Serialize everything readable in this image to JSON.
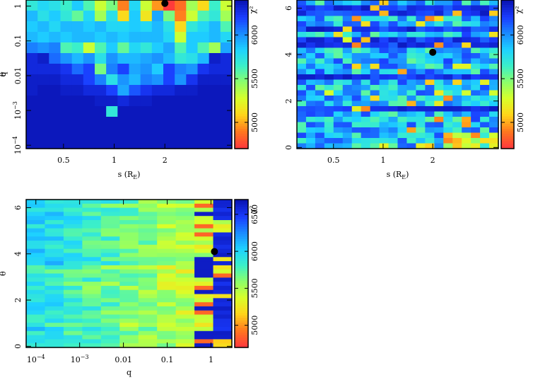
{
  "colors": {
    "scale": [
      "#ff3b3b",
      "#ff7a1e",
      "#ffd51a",
      "#d8ff2a",
      "#8cff6a",
      "#3cf0c8",
      "#1ed2ff",
      "#1a8cff",
      "#1a3cff",
      "#0a14b4"
    ],
    "marker": "#000000"
  },
  "chart_data": [
    {
      "id": "panel-top-left",
      "type": "heatmap",
      "xlabel": "s (R_E)",
      "xlabel_main": "s (R",
      "xlabel_sub": "E",
      "xlabel_close": ")",
      "ylabel": "q",
      "x_scale": "log",
      "xlim": [
        0.3,
        5.0
      ],
      "y_scale": "log",
      "ylim": [
        8e-05,
        1.5
      ],
      "x_ticks": [
        {
          "value": 0.5,
          "label": "0.5"
        },
        {
          "value": 1,
          "label": "1"
        },
        {
          "value": 2,
          "label": "2"
        }
      ],
      "y_ticks": [
        {
          "value": 1,
          "label": "1"
        },
        {
          "value": 0.1,
          "label": "0.1"
        },
        {
          "value": 0.01,
          "label": "0.01"
        },
        {
          "value": 0.001,
          "label": "10",
          "exp": "−3"
        },
        {
          "value": 0.0001,
          "label": "10",
          "exp": "−4"
        }
      ],
      "colorbar": {
        "label": "χ²",
        "ticks": [
          {
            "value": 5000,
            "label": "5000"
          },
          {
            "value": 5500,
            "label": "5500"
          },
          {
            "value": 6000,
            "label": "6000"
          }
        ],
        "range": [
          4700,
          6400
        ]
      },
      "best_fit": {
        "x": 2,
        "y": 1.2
      },
      "grid": {
        "cols": 18,
        "rows": 14
      },
      "z": [
        [
          5700,
          5800,
          5750,
          5650,
          5850,
          5600,
          5300,
          5500,
          4900,
          5800,
          5300,
          4950,
          4700,
          4850,
          5400,
          5100,
          5650,
          5300
        ],
        [
          5900,
          5750,
          5850,
          5700,
          5550,
          5800,
          5400,
          5750,
          5100,
          5850,
          5150,
          5950,
          5500,
          4900,
          5300,
          5600,
          5700,
          5400
        ],
        [
          5850,
          5900,
          5800,
          5900,
          5900,
          5850,
          5900,
          5800,
          5800,
          5850,
          5800,
          5900,
          5750,
          5100,
          5700,
          5800,
          5900,
          5600
        ],
        [
          5900,
          5850,
          5900,
          5850,
          5900,
          5900,
          5850,
          5900,
          5850,
          5900,
          5900,
          5900,
          5800,
          5300,
          5850,
          5850,
          5900,
          5800
        ],
        [
          6050,
          6000,
          6050,
          5600,
          5650,
          5300,
          5600,
          5850,
          5550,
          5800,
          5700,
          5850,
          5950,
          5600,
          5850,
          5600,
          5400,
          5950
        ],
        [
          6300,
          6350,
          6100,
          6000,
          5900,
          6000,
          5750,
          6000,
          5900,
          5900,
          5950,
          6000,
          5900,
          5700,
          5750,
          5900,
          6350,
          6300
        ],
        [
          6300,
          6300,
          6300,
          6250,
          6100,
          6200,
          5500,
          6050,
          6200,
          5950,
          6000,
          5850,
          6200,
          6050,
          6000,
          6250,
          6300,
          6300
        ],
        [
          6350,
          6350,
          6350,
          6300,
          6300,
          6200,
          6050,
          5750,
          6000,
          5900,
          6050,
          6000,
          6200,
          6000,
          6250,
          6350,
          6350,
          6350
        ],
        [
          6350,
          6380,
          6380,
          6350,
          6350,
          6300,
          6300,
          6200,
          5950,
          6150,
          6250,
          6300,
          6300,
          6350,
          6350,
          6380,
          6380,
          6380
        ],
        [
          6380,
          6380,
          6380,
          6380,
          6380,
          6380,
          6350,
          6350,
          6300,
          6350,
          6350,
          6380,
          6380,
          6380,
          6380,
          6380,
          6380,
          6380
        ],
        [
          6380,
          6380,
          6380,
          6380,
          6380,
          6380,
          6380,
          5700,
          6380,
          6380,
          6380,
          6380,
          6380,
          6380,
          6380,
          6380,
          6380,
          6380
        ],
        [
          6380,
          6380,
          6380,
          6380,
          6380,
          6380,
          6380,
          6380,
          6380,
          6380,
          6380,
          6380,
          6380,
          6380,
          6380,
          6380,
          6380,
          6380
        ],
        [
          6380,
          6380,
          6380,
          6380,
          6380,
          6380,
          6380,
          6380,
          6380,
          6380,
          6380,
          6380,
          6380,
          6380,
          6380,
          6380,
          6380,
          6380
        ],
        [
          6380,
          6380,
          6380,
          6380,
          6380,
          6380,
          6380,
          6380,
          6380,
          6380,
          6380,
          6380,
          6380,
          6380,
          6380,
          6380,
          6380,
          6380
        ]
      ]
    },
    {
      "id": "panel-top-right",
      "type": "heatmap",
      "xlabel": "s (R_E)",
      "xlabel_main": "s (R",
      "xlabel_sub": "E",
      "xlabel_close": ")",
      "ylabel": "θ",
      "x_scale": "log",
      "xlim": [
        0.3,
        5.0
      ],
      "y_scale": "linear",
      "ylim": [
        -0.05,
        6.35
      ],
      "x_ticks": [
        {
          "value": 0.5,
          "label": "0.5"
        },
        {
          "value": 1,
          "label": "1"
        },
        {
          "value": 2,
          "label": "2"
        }
      ],
      "y_ticks": [
        {
          "value": 0,
          "label": "0"
        },
        {
          "value": 2,
          "label": "2"
        },
        {
          "value": 4,
          "label": "4"
        },
        {
          "value": 6,
          "label": "6"
        }
      ],
      "colorbar": {
        "label": "χ²",
        "ticks": [
          {
            "value": 5000,
            "label": "5000"
          },
          {
            "value": 5500,
            "label": "5500"
          },
          {
            "value": 6000,
            "label": "6000"
          }
        ],
        "range": [
          4700,
          6400
        ]
      },
      "best_fit": {
        "x": 2.0,
        "y": 4.1
      },
      "grid": {
        "cols": 22,
        "rows": 28
      },
      "z_seed": 17,
      "z_rule": "banded"
    },
    {
      "id": "panel-bottom-left",
      "type": "heatmap",
      "xlabel": "q",
      "ylabel": "θ",
      "x_scale": "log",
      "xlim": [
        6e-05,
        3.0
      ],
      "y_scale": "linear",
      "ylim": [
        -0.05,
        6.35
      ],
      "x_ticks": [
        {
          "value": 0.0001,
          "label": "10",
          "exp": "−4"
        },
        {
          "value": 0.001,
          "label": "10",
          "exp": "−3"
        },
        {
          "value": 0.01,
          "label": "0.01"
        },
        {
          "value": 0.1,
          "label": "0.1"
        },
        {
          "value": 1,
          "label": "1"
        }
      ],
      "y_ticks": [
        {
          "value": 0,
          "label": "0"
        },
        {
          "value": 2,
          "label": "2"
        },
        {
          "value": 4,
          "label": "4"
        },
        {
          "value": 6,
          "label": "6"
        }
      ],
      "colorbar": {
        "label": "χ²",
        "ticks": [
          {
            "value": 5000,
            "label": "5000"
          },
          {
            "value": 5500,
            "label": "5500"
          },
          {
            "value": 6000,
            "label": "6000"
          },
          {
            "value": 6500,
            "label": "6500"
          }
        ],
        "range": [
          4700,
          6700
        ]
      },
      "best_fit": {
        "x": 1.2,
        "y": 4.1
      },
      "grid": {
        "cols": 11,
        "rows": 36
      },
      "z_seed": 5,
      "z_rule": "qgradient"
    }
  ]
}
